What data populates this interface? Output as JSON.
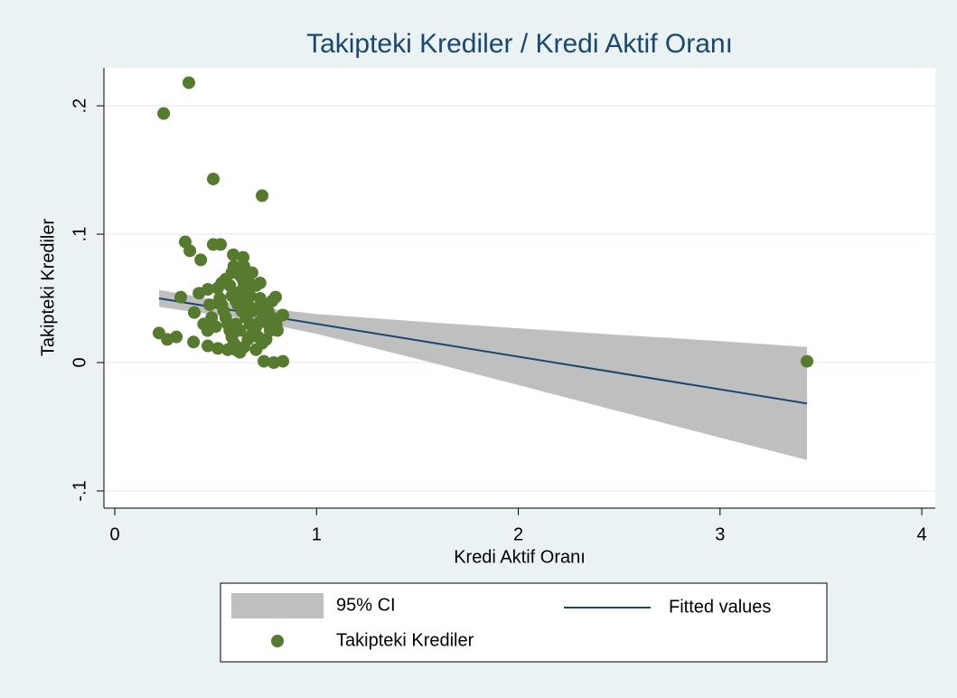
{
  "chart_data": {
    "type": "scatter",
    "title": "Takipteki Krediler / Kredi Aktif Oranı",
    "xlabel": "Kredi Aktif Oranı",
    "ylabel": "Takipteki Krediler",
    "xlim": [
      -0.054,
      4.067
    ],
    "ylim": [
      -0.1134,
      0.2296
    ],
    "xticks": [
      0,
      1,
      2,
      3,
      4
    ],
    "yticks": [
      {
        "value": -0.1,
        "label": "-.1"
      },
      0,
      {
        "value": 0.1,
        "label": ".1"
      },
      {
        "value": 0.2,
        "label": ".2"
      }
    ],
    "grid": true,
    "series": [
      {
        "name": "95% CI",
        "type": "area",
        "color": "#bfbfbf",
        "x": [
          0.22,
          0.4,
          0.63,
          1.0,
          1.5,
          2.0,
          2.5,
          3.0,
          3.431
        ],
        "lower": [
          0.0434,
          0.0392,
          0.0345,
          0.0224,
          0.0028,
          -0.0175,
          -0.038,
          -0.0585,
          -0.0759
        ],
        "upper": [
          0.0566,
          0.0516,
          0.0445,
          0.0378,
          0.032,
          0.0267,
          0.0216,
          0.0167,
          0.0121
        ]
      },
      {
        "name": "Fitted values",
        "type": "line",
        "color": "#1a476f",
        "x": [
          0.219,
          3.431
        ],
        "values": [
          0.05,
          -0.0319
        ]
      },
      {
        "name": "Takipteki Krediler",
        "type": "scatter",
        "color": "#567a2e",
        "x": [
          0.367,
          0.242,
          0.488,
          0.73,
          0.349,
          0.372,
          0.488,
          0.524,
          0.426,
          3.431,
          0.219,
          0.26,
          0.305,
          0.327,
          0.39,
          0.417,
          0.394,
          0.461,
          0.461,
          0.511,
          0.739,
          0.788,
          0.833,
          0.833,
          0.797,
          0.806,
          0.587,
          0.636,
          0.55,
          0.57,
          0.58,
          0.59,
          0.6,
          0.62,
          0.63,
          0.64,
          0.65,
          0.66,
          0.67,
          0.68,
          0.7,
          0.72,
          0.74,
          0.76,
          0.78,
          0.8,
          0.52,
          0.53,
          0.54,
          0.55,
          0.56,
          0.57,
          0.58,
          0.59,
          0.6,
          0.62,
          0.64,
          0.66,
          0.68,
          0.7,
          0.72,
          0.74,
          0.61,
          0.63,
          0.65,
          0.67,
          0.69,
          0.71,
          0.73,
          0.75,
          0.77,
          0.62,
          0.64,
          0.66,
          0.68,
          0.7,
          0.58,
          0.6,
          0.6,
          0.62,
          0.56,
          0.5,
          0.48,
          0.46,
          0.44,
          0.47,
          0.51,
          0.53,
          0.66,
          0.72,
          0.78,
          0.76,
          0.7,
          0.64
        ],
        "values": [
          0.218,
          0.194,
          0.143,
          0.13,
          0.094,
          0.087,
          0.092,
          0.092,
          0.08,
          0.001,
          0.023,
          0.018,
          0.02,
          0.051,
          0.016,
          0.054,
          0.039,
          0.057,
          0.013,
          0.011,
          0.001,
          0.0,
          0.001,
          0.037,
          0.051,
          0.025,
          0.084,
          0.082,
          0.065,
          0.06,
          0.07,
          0.075,
          0.072,
          0.068,
          0.066,
          0.062,
          0.058,
          0.055,
          0.052,
          0.07,
          0.06,
          0.05,
          0.045,
          0.04,
          0.035,
          0.03,
          0.05,
          0.045,
          0.04,
          0.035,
          0.03,
          0.025,
          0.02,
          0.015,
          0.01,
          0.008,
          0.012,
          0.018,
          0.022,
          0.028,
          0.032,
          0.038,
          0.045,
          0.04,
          0.035,
          0.03,
          0.025,
          0.02,
          0.015,
          0.018,
          0.025,
          0.055,
          0.05,
          0.045,
          0.04,
          0.042,
          0.052,
          0.048,
          0.03,
          0.025,
          0.01,
          0.028,
          0.035,
          0.025,
          0.03,
          0.045,
          0.058,
          0.062,
          0.065,
          0.062,
          0.048,
          0.03,
          0.01,
          0.075
        ]
      }
    ]
  }
}
